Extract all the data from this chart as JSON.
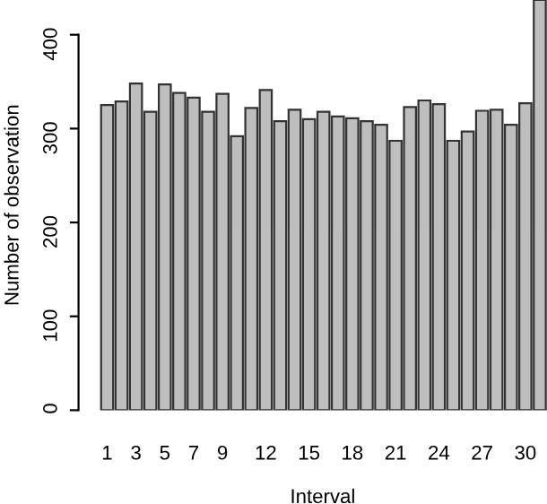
{
  "chart_data": {
    "type": "bar",
    "xlabel": "Interval",
    "ylabel": "Number of observation",
    "categories": [
      "1",
      null,
      "3",
      null,
      "5",
      null,
      "7",
      null,
      "9",
      null,
      null,
      "12",
      null,
      null,
      "15",
      null,
      null,
      "18",
      null,
      null,
      "21",
      null,
      null,
      "24",
      null,
      null,
      "27",
      null,
      null,
      "30",
      null
    ],
    "values": [
      325,
      329,
      348,
      318,
      347,
      338,
      333,
      318,
      337,
      292,
      322,
      341,
      308,
      320,
      310,
      318,
      313,
      311,
      308,
      304,
      287,
      323,
      330,
      326,
      287,
      297,
      319,
      320,
      304,
      327,
      437
    ],
    "color": "#bebebe",
    "ylim": [
      0,
      437
    ],
    "yticks": [
      0,
      100,
      200,
      300,
      400
    ],
    "grid": false,
    "legend": false
  }
}
